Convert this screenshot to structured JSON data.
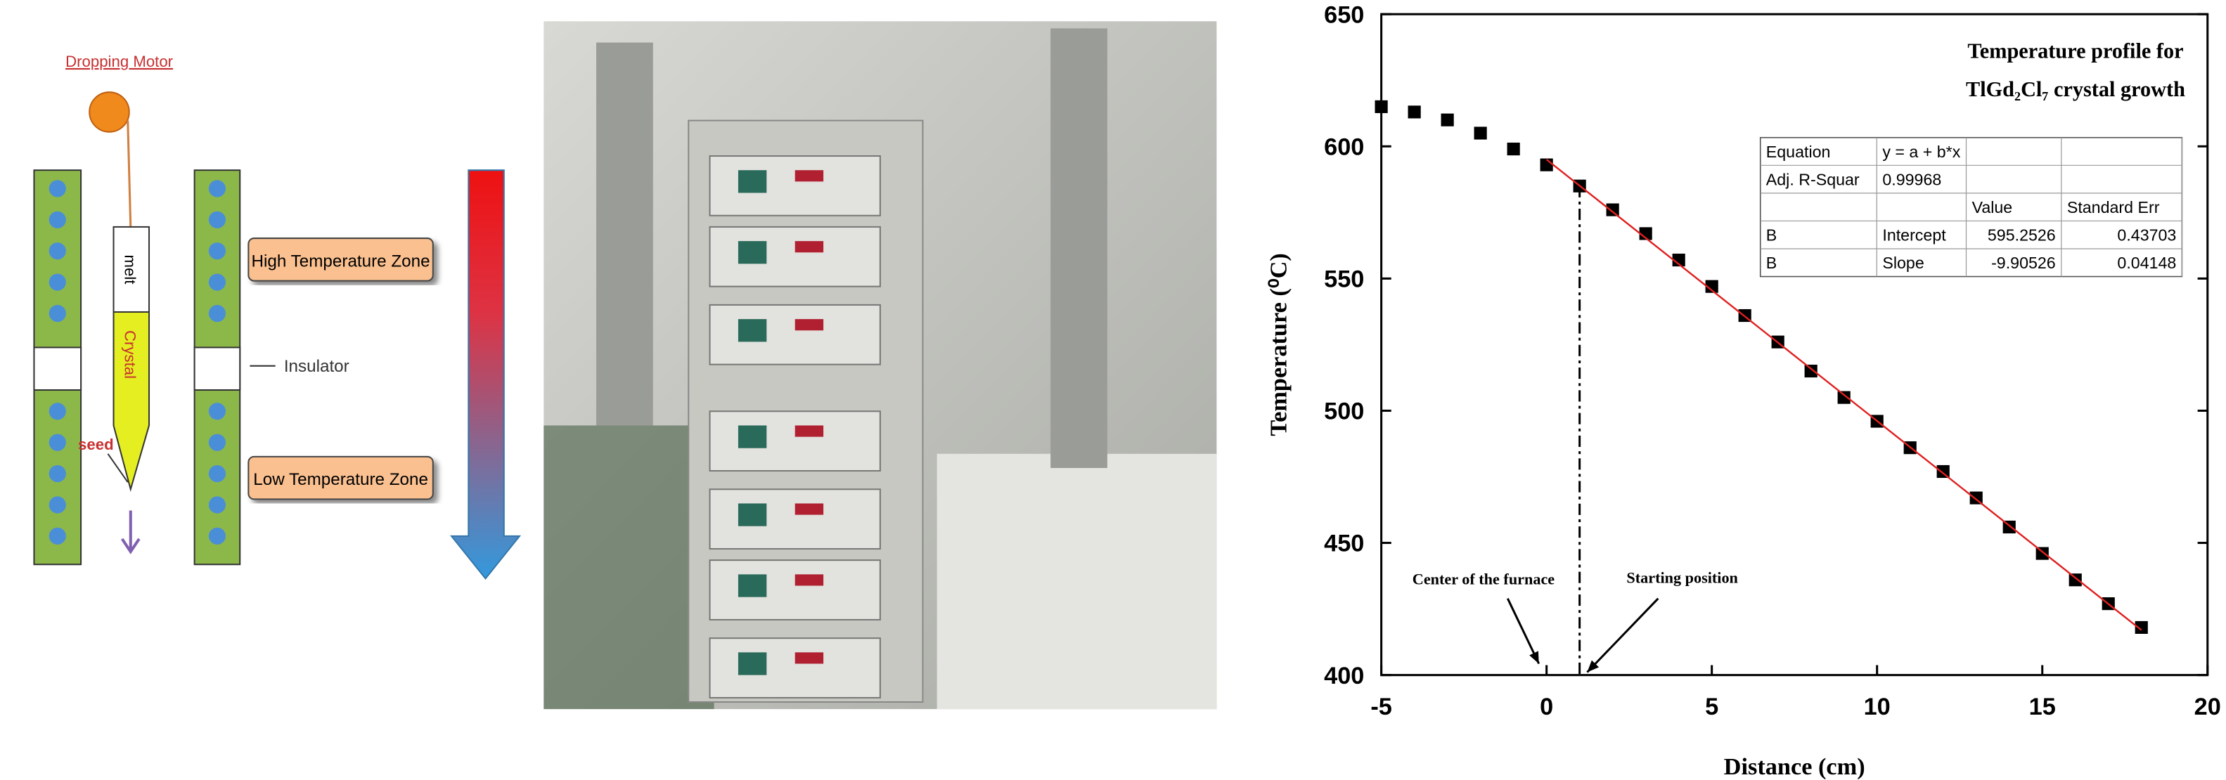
{
  "diagram": {
    "dropping_motor": "Dropping Motor",
    "melt": "melt",
    "crystal": "Crystal",
    "seed": "seed",
    "high_zone": "High Temperature Zone",
    "insulator": "Insulator",
    "low_zone": "Low Temperature Zone"
  },
  "chart_data": {
    "type": "scatter",
    "title": [
      "Temperature profile for",
      "TlGd₂Cl₇ crystal growth"
    ],
    "x_label": "Distance (cm)",
    "y_label": "Temperature (⁰C)",
    "xlim": [
      -5,
      20
    ],
    "xticks": [
      -5,
      0,
      5,
      10,
      15,
      20
    ],
    "ylim": [
      400,
      650
    ],
    "yticks": [
      400,
      450,
      500,
      550,
      600,
      650
    ],
    "series": [
      {
        "type": "scatter",
        "color": "#000000",
        "x": [
          -5,
          -4,
          -3,
          -2,
          -1,
          0,
          1,
          2,
          3,
          4,
          5,
          6,
          7,
          8,
          9,
          10,
          11,
          12,
          13,
          14,
          15,
          16,
          17,
          18
        ],
        "values": [
          615,
          613,
          610,
          605,
          599,
          593,
          585,
          576,
          567,
          557,
          547,
          536,
          526,
          515,
          505,
          496,
          486,
          477,
          467,
          456,
          446,
          436,
          427,
          418
        ]
      },
      {
        "type": "line",
        "color": "#e02020",
        "x": [
          0,
          18
        ],
        "values": [
          595,
          417
        ]
      }
    ],
    "vline": {
      "x": 1,
      "ytop": 585
    },
    "annotations": [
      {
        "text": "Center of the furnace",
        "x": 0
      },
      {
        "text": "Starting position",
        "x": 1
      }
    ],
    "fit_table": [
      [
        "Equation",
        "y = a + b*x",
        null,
        null
      ],
      [
        "Adj. R-Squar",
        "0.99968",
        null,
        null
      ],
      [
        null,
        null,
        "Value",
        "Standard Err"
      ],
      [
        "B",
        "Intercept",
        "595.2526",
        "0.43703"
      ],
      [
        "B",
        "Slope",
        "-9.90526",
        "0.04148"
      ]
    ]
  }
}
